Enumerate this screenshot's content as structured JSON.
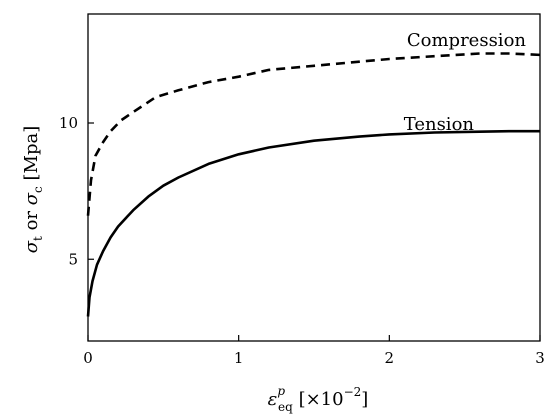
{
  "chart_data": {
    "type": "line",
    "xlim": [
      0,
      3
    ],
    "ylim": [
      2,
      14
    ],
    "x_ticks": [
      "0",
      "1",
      "2",
      "3"
    ],
    "y_ticks": [
      "5",
      "10"
    ],
    "x_tick_values": [
      0,
      1,
      2,
      3
    ],
    "y_tick_values": [
      5,
      10
    ],
    "xlabel": {
      "prefix": "ε",
      "superscript": "p",
      "subscript": "eq",
      "unit_open": "[×10",
      "unit_exp": "−2",
      "unit_close": "]"
    },
    "ylabel": {
      "s1": "σ",
      "s1_sub": "t",
      "mid": " or ",
      "s2": "σ",
      "s2_sub": "c",
      "unit": " [Mpa]"
    },
    "grid": false,
    "series": [
      {
        "name": "Compression",
        "style": "dashed",
        "color": "#000000",
        "x": [
          0,
          0.02,
          0.05,
          0.1,
          0.15,
          0.22,
          0.3,
          0.45,
          0.6,
          0.8,
          1.0,
          1.2,
          1.5,
          1.8,
          2.0,
          2.3,
          2.6,
          2.8,
          3.0
        ],
        "y": [
          6.6,
          7.9,
          8.8,
          9.3,
          9.7,
          10.1,
          10.4,
          10.95,
          11.2,
          11.5,
          11.7,
          11.95,
          12.1,
          12.25,
          12.35,
          12.45,
          12.55,
          12.55,
          12.5
        ]
      },
      {
        "name": "Tension",
        "style": "solid",
        "color": "#000000",
        "x": [
          0,
          0.01,
          0.03,
          0.06,
          0.1,
          0.15,
          0.2,
          0.3,
          0.4,
          0.5,
          0.6,
          0.8,
          1.0,
          1.2,
          1.5,
          1.8,
          2.0,
          2.3,
          2.6,
          2.8,
          3.0
        ],
        "y": [
          2.9,
          3.6,
          4.2,
          4.8,
          5.3,
          5.8,
          6.2,
          6.8,
          7.3,
          7.7,
          8.0,
          8.5,
          8.85,
          9.1,
          9.35,
          9.5,
          9.58,
          9.65,
          9.68,
          9.7,
          9.7
        ]
      }
    ]
  }
}
